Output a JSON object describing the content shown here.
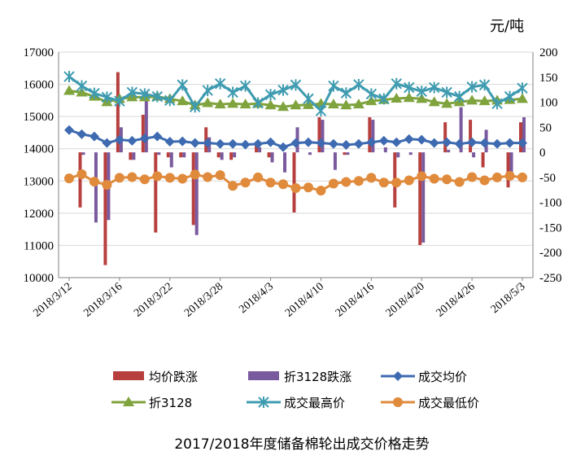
{
  "chart_data": {
    "type": "bar+line",
    "title": "2017/2018年度储备棉轮出成交价格走势",
    "right_axis_unit": "元/吨",
    "left_axis": {
      "min": 10000,
      "max": 17000,
      "step": 1000,
      "ticks": [
        "10000",
        "11000",
        "12000",
        "13000",
        "14000",
        "15000",
        "16000",
        "17000"
      ]
    },
    "right_axis": {
      "min": -250,
      "max": 200,
      "step": 50,
      "ticks": [
        "-250",
        "-200",
        "-150",
        "-100",
        "-50",
        "0",
        "50",
        "100",
        "150",
        "200"
      ]
    },
    "x_tick_labels": [
      "2018/3/12",
      "2018/3/16",
      "2018/3/22",
      "2018/3/28",
      "2018/4/3",
      "2018/4/10",
      "2018/4/16",
      "2018/4/20",
      "2018/4/26",
      "2018/5/3"
    ],
    "x_tick_index": [
      0,
      4,
      8,
      12,
      16,
      20,
      24,
      28,
      32,
      36
    ],
    "n_points": 37,
    "series": [
      {
        "name": "均价跌涨",
        "type": "bar",
        "axis": "right",
        "color": "#b7403f",
        "values": [
          0,
          -110,
          0,
          -225,
          160,
          -15,
          75,
          -160,
          -10,
          -10,
          -145,
          50,
          -10,
          -15,
          0,
          15,
          -10,
          0,
          -120,
          0,
          70,
          0,
          -5,
          0,
          70,
          0,
          -110,
          0,
          -185,
          0,
          60,
          0,
          65,
          -30,
          0,
          -70,
          60
        ]
      },
      {
        "name": "折3128跌涨",
        "type": "bar",
        "axis": "right",
        "color": "#7a5a9e",
        "values": [
          0,
          -5,
          -140,
          -135,
          50,
          -15,
          120,
          -5,
          -30,
          -10,
          -165,
          30,
          -15,
          -10,
          0,
          10,
          -20,
          -40,
          50,
          -5,
          65,
          -35,
          -5,
          0,
          65,
          10,
          -10,
          -5,
          -180,
          0,
          5,
          90,
          -10,
          45,
          0,
          -55,
          70
        ]
      },
      {
        "name": "成交均价",
        "type": "line",
        "axis": "left",
        "color": "#3d6ab0",
        "marker": "diamond",
        "values": [
          14580,
          14450,
          14380,
          14180,
          14280,
          14250,
          14320,
          14380,
          14220,
          14230,
          14180,
          14180,
          14150,
          14150,
          14130,
          14150,
          14200,
          14050,
          14180,
          14200,
          14180,
          14150,
          14120,
          14150,
          14200,
          14250,
          14200,
          14300,
          14280,
          14180,
          14200,
          14150,
          14200,
          14180,
          14150,
          14180,
          14180
        ]
      },
      {
        "name": "折3128",
        "type": "line",
        "axis": "left",
        "color": "#7fa33d",
        "marker": "triangle",
        "values": [
          15800,
          15750,
          15620,
          15450,
          15550,
          15600,
          15600,
          15620,
          15550,
          15480,
          15350,
          15420,
          15380,
          15400,
          15380,
          15400,
          15350,
          15300,
          15350,
          15360,
          15400,
          15380,
          15350,
          15380,
          15480,
          15520,
          15560,
          15580,
          15550,
          15450,
          15400,
          15450,
          15500,
          15480,
          15500,
          15520,
          15550
        ]
      },
      {
        "name": "成交最高价",
        "type": "line",
        "axis": "left",
        "color": "#3e9bb0",
        "marker": "asterisk",
        "values": [
          16240,
          15950,
          15720,
          15600,
          15480,
          15750,
          15700,
          15620,
          15500,
          15980,
          15300,
          15810,
          16020,
          15750,
          15950,
          15420,
          15680,
          15820,
          15980,
          15550,
          15180,
          15950,
          15730,
          15990,
          15700,
          15550,
          16020,
          15900,
          15780,
          15900,
          15750,
          15620,
          15920,
          15980,
          15400,
          15620,
          15880
        ]
      },
      {
        "name": "成交最低价",
        "type": "line",
        "axis": "left",
        "color": "#e08a3c",
        "marker": "circle",
        "values": [
          13080,
          13210,
          12980,
          12880,
          13100,
          13120,
          13050,
          13150,
          13100,
          13070,
          13200,
          13120,
          13180,
          12850,
          12950,
          13110,
          12950,
          12900,
          12780,
          12800,
          12700,
          12920,
          12970,
          13000,
          13100,
          12950,
          12950,
          13020,
          13150,
          13070,
          13050,
          12970,
          13120,
          13020,
          13110,
          13160,
          13110
        ]
      }
    ],
    "legend_position": "bottom"
  }
}
